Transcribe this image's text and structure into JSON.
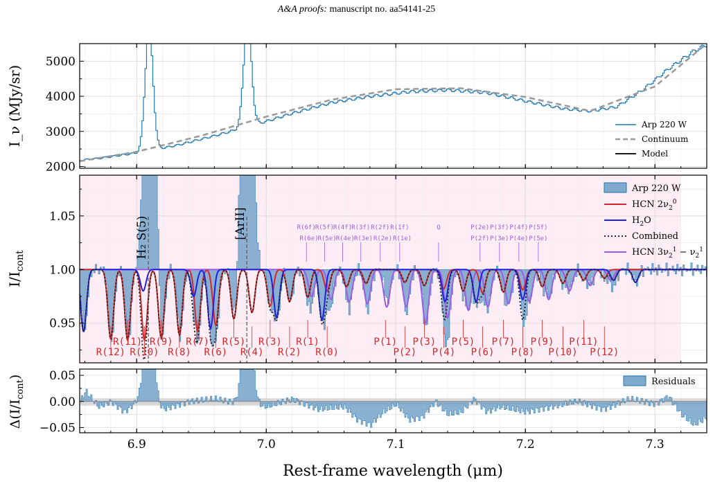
{
  "header": {
    "journal": "A&A proofs:",
    "manuscript": "manuscript no. aa54141-25"
  },
  "colors": {
    "data": "#1f77b4",
    "data_fill": "#7fa9cd",
    "continuum": "#999999",
    "model": "#1a1a1a",
    "hcn_fund": "#d62728",
    "h2o": "#1f1fe6",
    "combined": "#222222",
    "hcn_hot": "#9b5de5",
    "shade": "#fde4f0",
    "residual_band": "#cfcfcf"
  },
  "chart_data": [
    {
      "type": "line",
      "panel": "top",
      "ylabel": "I_ν (MJy/sr)",
      "xlim": [
        6.856,
        7.34
      ],
      "ylim": [
        1950,
        5500
      ],
      "yticks": [
        "2000",
        "3000",
        "4000",
        "5000"
      ],
      "xticks": [
        "6.9",
        "7.0",
        "7.1",
        "7.2",
        "7.3"
      ],
      "grid": true,
      "legend_position": "lower-right",
      "series": [
        {
          "name": "Arp 220 W",
          "style": "step",
          "x": [
            6.856,
            6.87,
            6.9,
            6.93,
            6.96,
            6.99,
            7.02,
            7.05,
            7.08,
            7.11,
            7.14,
            7.17,
            7.2,
            7.23,
            7.25,
            7.27,
            7.29,
            7.31,
            7.33,
            7.34
          ],
          "y": [
            2180,
            2230,
            2390,
            2600,
            2880,
            3180,
            3520,
            3820,
            4000,
            4130,
            4180,
            4100,
            3860,
            3640,
            3580,
            3700,
            4180,
            4780,
            5300,
            5480
          ],
          "peaks": [
            {
              "x": 6.909,
              "height": 3500,
              "width": 0.003
            },
            {
              "x": 6.985,
              "height": 3000,
              "width": 0.003
            }
          ]
        },
        {
          "name": "Continuum",
          "style": "dashed",
          "x": [
            6.856,
            6.9,
            6.95,
            7.0,
            7.05,
            7.1,
            7.15,
            7.2,
            7.25,
            7.3,
            7.34
          ],
          "y": [
            2150,
            2420,
            2880,
            3420,
            3900,
            4200,
            4230,
            3980,
            3580,
            4280,
            5500
          ]
        },
        {
          "name": "Model",
          "style": "solid",
          "x": [
            6.856,
            6.9,
            6.95,
            7.0,
            7.05,
            7.1,
            7.15,
            7.2,
            7.25,
            7.3,
            7.34
          ],
          "y": [
            2150,
            2420,
            2880,
            3420,
            3900,
            4200,
            4230,
            3980,
            3580,
            4280,
            5500
          ],
          "wiggle_depth": 0.032
        }
      ]
    },
    {
      "type": "line",
      "panel": "middle",
      "ylabel": "I/I_cont",
      "xlim": [
        6.856,
        7.34
      ],
      "ylim": [
        0.913,
        1.088
      ],
      "yticks": [
        "0.95",
        "1.00",
        "1.05"
      ],
      "grid": true,
      "legend_position": "upper-right",
      "shaded_region": [
        6.856,
        7.32
      ],
      "series_names": [
        "Arp 220 W",
        "HCN 2ν₂⁰",
        "H₂O",
        "Combined",
        "HCN 3ν₂¹ − ν₂¹"
      ],
      "hcn_lines_x": [
        6.88,
        6.893,
        6.906,
        6.919,
        6.933,
        6.947,
        6.961,
        6.975,
        6.989,
        7.003,
        7.018,
        7.032,
        7.047,
        7.062,
        7.077,
        7.107,
        7.122,
        7.137,
        7.152,
        7.167,
        7.183,
        7.198,
        7.213,
        7.229,
        7.245,
        7.261
      ],
      "hcn_depths": [
        0.065,
        0.066,
        0.066,
        0.064,
        0.061,
        0.057,
        0.052,
        0.046,
        0.04,
        0.034,
        0.03,
        0.026,
        0.02,
        0.016,
        0.013,
        0.012,
        0.015,
        0.018,
        0.02,
        0.022,
        0.021,
        0.019,
        0.016,
        0.013,
        0.01,
        0.008
      ],
      "h2o_lines": [
        {
          "x": 6.859,
          "depth": 0.058
        },
        {
          "x": 6.905,
          "depth": 0.02
        },
        {
          "x": 6.944,
          "depth": 0.025
        },
        {
          "x": 6.957,
          "depth": 0.055
        },
        {
          "x": 7.008,
          "depth": 0.045
        },
        {
          "x": 7.043,
          "depth": 0.047
        },
        {
          "x": 7.138,
          "depth": 0.03
        },
        {
          "x": 7.162,
          "depth": 0.03
        },
        {
          "x": 7.198,
          "depth": 0.028
        },
        {
          "x": 7.268,
          "depth": 0.01
        },
        {
          "x": 7.285,
          "depth": 0.012
        }
      ],
      "hot_lines": [
        {
          "x": 7.035,
          "depth": 0.025
        },
        {
          "x": 7.05,
          "depth": 0.028
        },
        {
          "x": 7.064,
          "depth": 0.03
        },
        {
          "x": 7.078,
          "depth": 0.032
        },
        {
          "x": 7.093,
          "depth": 0.035
        },
        {
          "x": 7.108,
          "depth": 0.035
        },
        {
          "x": 7.123,
          "depth": 0.05
        },
        {
          "x": 7.14,
          "depth": 0.045
        },
        {
          "x": 7.156,
          "depth": 0.038
        },
        {
          "x": 7.171,
          "depth": 0.035
        },
        {
          "x": 7.187,
          "depth": 0.032
        },
        {
          "x": 7.203,
          "depth": 0.03
        },
        {
          "x": 7.218,
          "depth": 0.028
        },
        {
          "x": 7.234,
          "depth": 0.02
        },
        {
          "x": 7.25,
          "depth": 0.015
        },
        {
          "x": 7.266,
          "depth": 0.01
        }
      ],
      "emission_lines": [
        {
          "label": "H₂ S(5)",
          "x": 6.909
        },
        {
          "label": "[ArII]",
          "x": 6.985
        }
      ],
      "branch_labels_top": [
        {
          "text": "R(12)",
          "x": 6.88
        },
        {
          "text": "R(10)",
          "x": 6.906
        },
        {
          "text": "R(8)",
          "x": 6.933
        },
        {
          "text": "R(6)",
          "x": 6.961
        },
        {
          "text": "R(4)",
          "x": 6.989
        },
        {
          "text": "R(2)",
          "x": 7.018
        },
        {
          "text": "R(0)",
          "x": 7.047
        },
        {
          "text": "P(2)",
          "x": 7.107
        },
        {
          "text": "P(4)",
          "x": 7.137
        },
        {
          "text": "P(6)",
          "x": 7.167
        },
        {
          "text": "P(8)",
          "x": 7.198
        },
        {
          "text": "P(10)",
          "x": 7.229
        },
        {
          "text": "P(12)",
          "x": 7.261
        }
      ],
      "branch_labels_bottom": [
        {
          "text": "R(11)",
          "x": 6.893
        },
        {
          "text": "R(9)",
          "x": 6.919
        },
        {
          "text": "R(7)",
          "x": 6.947
        },
        {
          "text": "R(5)",
          "x": 6.975
        },
        {
          "text": "R(3)",
          "x": 7.003
        },
        {
          "text": "R(1)",
          "x": 7.032
        },
        {
          "text": "P(1)",
          "x": 7.092
        },
        {
          "text": "P(3)",
          "x": 7.122
        },
        {
          "text": "P(5)",
          "x": 7.152
        },
        {
          "text": "P(7)",
          "x": 7.183
        },
        {
          "text": "P(9)",
          "x": 7.213
        },
        {
          "text": "P(11)",
          "x": 7.245
        }
      ],
      "hot_labels_f": [
        {
          "text": "R(6f)",
          "x": 7.031
        },
        {
          "text": "R(5f)",
          "x": 7.045
        },
        {
          "text": "R(4f)",
          "x": 7.059
        },
        {
          "text": "R(3f)",
          "x": 7.073
        },
        {
          "text": "R(2f)",
          "x": 7.088
        },
        {
          "text": "R(1f)",
          "x": 7.103
        },
        {
          "text": "Q",
          "x": 7.133
        },
        {
          "text": "P(2e)",
          "x": 7.165
        },
        {
          "text": "P(3f)",
          "x": 7.18
        },
        {
          "text": "P(4f)",
          "x": 7.195
        },
        {
          "text": "P(5f)",
          "x": 7.21
        }
      ],
      "hot_labels_e": [
        {
          "text": "R(6e)",
          "x": 7.033
        },
        {
          "text": "R(5e)",
          "x": 7.047
        },
        {
          "text": "R(4e)",
          "x": 7.061
        },
        {
          "text": "R(3e)",
          "x": 7.075
        },
        {
          "text": "R(2e)",
          "x": 7.09
        },
        {
          "text": "R(1e)",
          "x": 7.105
        },
        {
          "text": "P(2f)",
          "x": 7.165
        },
        {
          "text": "P(3e)",
          "x": 7.18
        },
        {
          "text": "P(4e)",
          "x": 7.195
        },
        {
          "text": "P(5e)",
          "x": 7.21
        }
      ]
    },
    {
      "type": "area",
      "panel": "bottom",
      "ylabel": "Δ(I/I_cont)",
      "xlabel": "Rest-frame wavelength (μm)",
      "xlim": [
        6.856,
        7.34
      ],
      "ylim": [
        -0.06,
        0.062
      ],
      "yticks": [
        "0.05",
        "0.00",
        "−0.05"
      ],
      "grid": true,
      "legend_position": "upper-right",
      "band": [
        -0.008,
        0.006
      ],
      "series": [
        {
          "name": "Residuals",
          "x": [
            6.856,
            6.86,
            6.87,
            6.88,
            6.89,
            6.9,
            6.92,
            6.94,
            6.96,
            6.97,
            7.0,
            7.02,
            7.04,
            7.06,
            7.07,
            7.08,
            7.09,
            7.1,
            7.11,
            7.12,
            7.13,
            7.14,
            7.15,
            7.16,
            7.17,
            7.18,
            7.2,
            7.22,
            7.24,
            7.26,
            7.28,
            7.3,
            7.31,
            7.32,
            7.33,
            7.34
          ],
          "y": [
            0.0,
            0.02,
            -0.01,
            0.0,
            -0.02,
            0.0,
            -0.015,
            0.0,
            0.005,
            0.0,
            -0.01,
            0.005,
            -0.015,
            -0.01,
            -0.035,
            -0.045,
            -0.02,
            -0.005,
            -0.035,
            -0.03,
            0.0,
            -0.025,
            -0.02,
            0.005,
            -0.02,
            -0.01,
            -0.02,
            -0.01,
            0.0,
            -0.015,
            0.005,
            -0.005,
            0.01,
            -0.025,
            -0.045,
            -0.03
          ],
          "peaks": [
            {
              "x": 6.909,
              "height": 0.2,
              "width": 0.0035
            },
            {
              "x": 6.985,
              "height": 0.2,
              "width": 0.0035
            }
          ]
        }
      ]
    }
  ]
}
